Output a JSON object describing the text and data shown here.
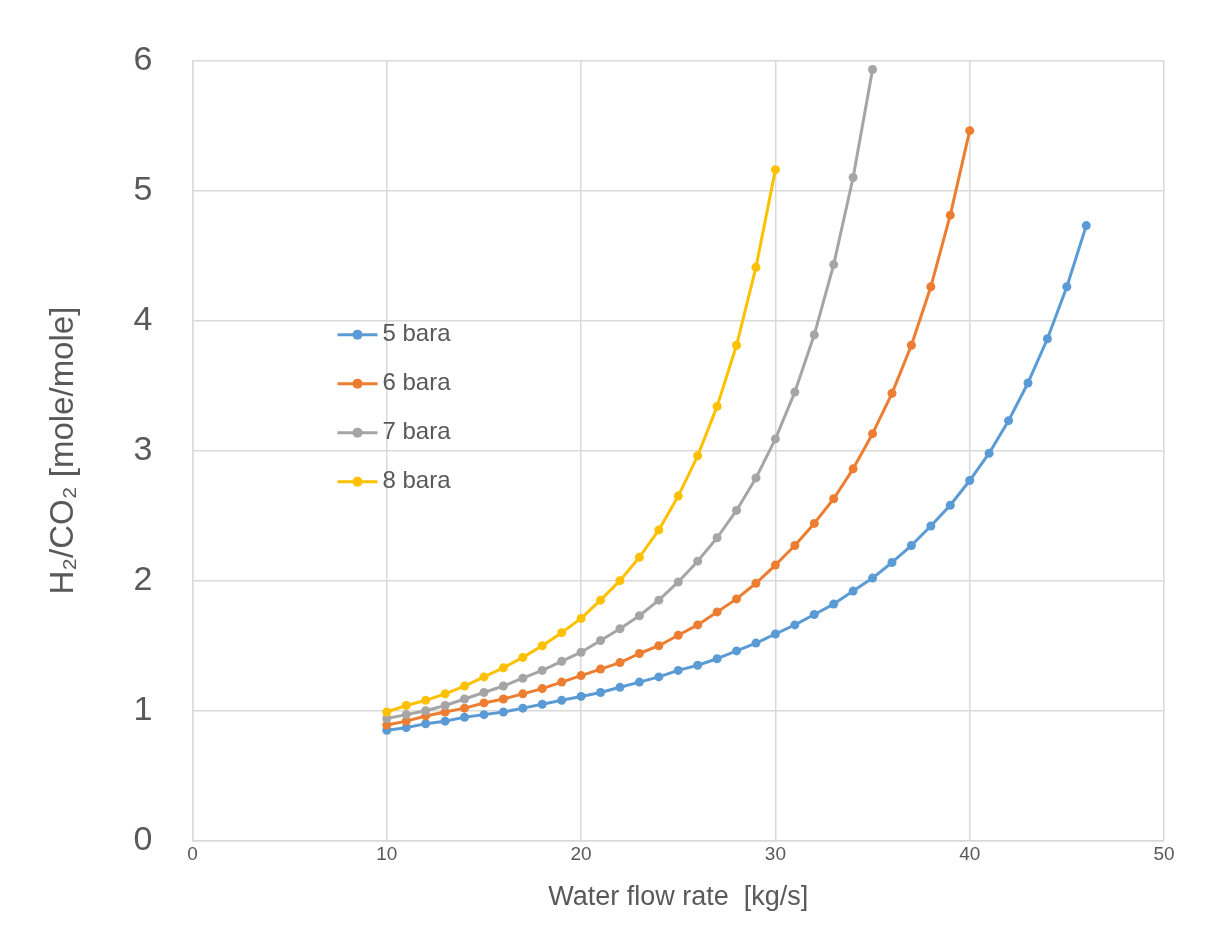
{
  "chart_data": {
    "type": "line",
    "xlabel": "Water flow rate  [kg/s]",
    "ylabel": "H₂/CO₂ [mole/mole]",
    "xlim": [
      0,
      50
    ],
    "xticks": [
      0,
      10,
      20,
      30,
      40,
      50
    ],
    "ylim": [
      0,
      6
    ],
    "yticks": [
      0,
      1,
      2,
      3,
      4,
      5,
      6
    ],
    "grid": true,
    "legend": "left",
    "marker": "circle",
    "series": [
      {
        "name": "5 bara",
        "color": "#5b9bd5",
        "x": [
          10,
          11,
          12,
          13,
          14,
          15,
          16,
          17,
          18,
          19,
          20,
          21,
          22,
          23,
          24,
          25,
          26,
          27,
          28,
          29,
          30,
          31,
          32,
          33,
          34,
          35,
          36,
          37,
          38,
          39,
          40,
          41,
          42,
          43,
          44,
          45,
          46
        ],
        "values": [
          0.85,
          0.87,
          0.9,
          0.92,
          0.95,
          0.97,
          0.99,
          1.02,
          1.05,
          1.08,
          1.11,
          1.14,
          1.18,
          1.22,
          1.26,
          1.31,
          1.35,
          1.4,
          1.46,
          1.52,
          1.59,
          1.66,
          1.74,
          1.82,
          1.92,
          2.02,
          2.14,
          2.27,
          2.42,
          2.58,
          2.77,
          2.98,
          3.23,
          3.52,
          3.86,
          4.26,
          4.73
        ]
      },
      {
        "name": "6 bara",
        "color": "#ed7d31",
        "x": [
          10,
          11,
          12,
          13,
          14,
          15,
          16,
          17,
          18,
          19,
          20,
          21,
          22,
          23,
          24,
          25,
          26,
          27,
          28,
          29,
          30,
          31,
          32,
          33,
          34,
          35,
          36,
          37,
          38,
          39,
          40
        ],
        "values": [
          0.89,
          0.92,
          0.96,
          0.99,
          1.02,
          1.06,
          1.09,
          1.13,
          1.17,
          1.22,
          1.27,
          1.32,
          1.37,
          1.44,
          1.5,
          1.58,
          1.66,
          1.76,
          1.86,
          1.98,
          2.12,
          2.27,
          2.44,
          2.63,
          2.86,
          3.13,
          3.44,
          3.81,
          4.26,
          4.81,
          5.46
        ]
      },
      {
        "name": "7 bara",
        "color": "#a5a5a5",
        "x": [
          10,
          11,
          12,
          13,
          14,
          15,
          16,
          17,
          18,
          19,
          20,
          21,
          22,
          23,
          24,
          25,
          26,
          27,
          28,
          29,
          30,
          31,
          32,
          33,
          34,
          35
        ],
        "values": [
          0.94,
          0.97,
          1.0,
          1.04,
          1.09,
          1.14,
          1.19,
          1.25,
          1.31,
          1.38,
          1.45,
          1.54,
          1.63,
          1.73,
          1.85,
          1.99,
          2.15,
          2.33,
          2.54,
          2.79,
          3.09,
          3.45,
          3.89,
          4.43,
          5.1,
          5.93
        ]
      },
      {
        "name": "8 bara",
        "color": "#ffc000",
        "x": [
          10,
          11,
          12,
          13,
          14,
          15,
          16,
          17,
          18,
          19,
          20,
          21,
          22,
          23,
          24,
          25,
          26,
          27,
          28,
          29,
          30
        ],
        "values": [
          0.99,
          1.04,
          1.08,
          1.13,
          1.19,
          1.26,
          1.33,
          1.41,
          1.5,
          1.6,
          1.71,
          1.85,
          2.0,
          2.18,
          2.39,
          2.65,
          2.96,
          3.34,
          3.81,
          4.41,
          5.16
        ]
      }
    ]
  }
}
